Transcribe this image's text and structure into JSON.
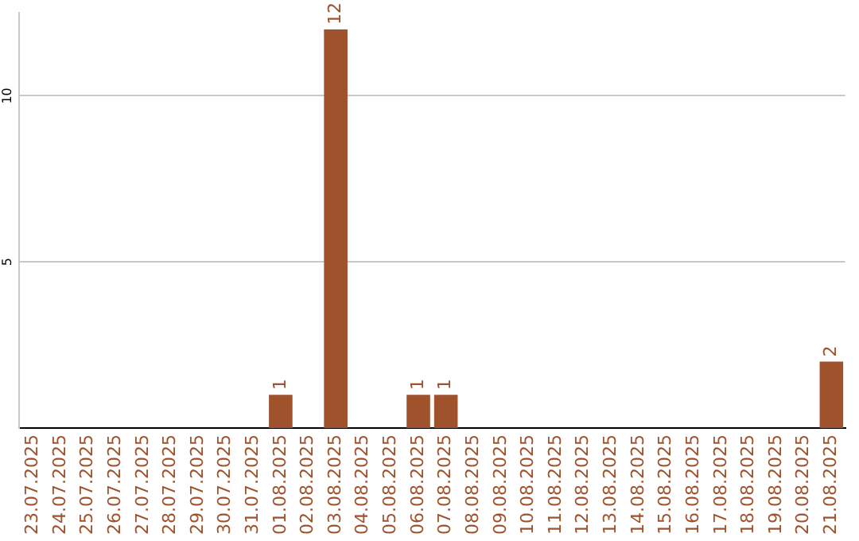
{
  "chart_data": {
    "type": "bar",
    "categories": [
      "23.07.2025",
      "24.07.2025",
      "25.07.2025",
      "26.07.2025",
      "27.07.2025",
      "28.07.2025",
      "29.07.2025",
      "30.07.2025",
      "31.07.2025",
      "01.08.2025",
      "02.08.2025",
      "03.08.2025",
      "04.08.2025",
      "05.08.2025",
      "06.08.2025",
      "07.08.2025",
      "08.08.2025",
      "09.08.2025",
      "10.08.2025",
      "11.08.2025",
      "12.08.2025",
      "13.08.2025",
      "14.08.2025",
      "15.08.2025",
      "16.08.2025",
      "17.08.2025",
      "18.08.2025",
      "19.08.2025",
      "20.08.2025",
      "21.08.2025"
    ],
    "values": [
      0,
      0,
      0,
      0,
      0,
      0,
      0,
      0,
      0,
      1,
      0,
      12,
      0,
      0,
      1,
      1,
      0,
      0,
      0,
      0,
      0,
      0,
      0,
      0,
      0,
      0,
      0,
      0,
      0,
      2
    ],
    "value_labels": [
      null,
      null,
      null,
      null,
      null,
      null,
      null,
      null,
      null,
      "1",
      null,
      "12",
      null,
      null,
      "1",
      "1",
      null,
      null,
      null,
      null,
      null,
      null,
      null,
      null,
      null,
      null,
      null,
      null,
      null,
      "2"
    ],
    "color": "#a0522d",
    "ylim": [
      0,
      12.5
    ],
    "yticks": [
      5,
      10
    ],
    "grid": "y",
    "legend": false
  }
}
